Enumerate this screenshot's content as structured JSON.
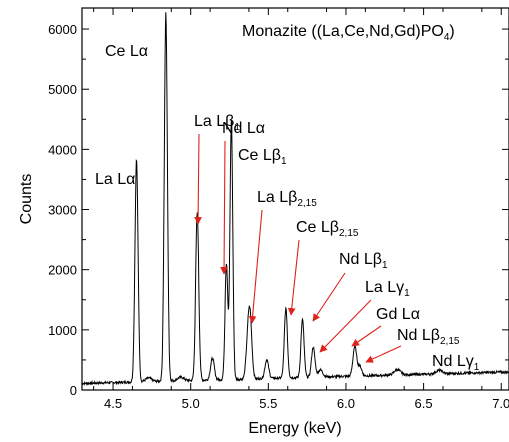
{
  "chart_data": {
    "type": "line",
    "title": "Monazite ((La,Ce,Nd,Gd)PO",
    "title_sub": "4",
    "title_end": ")",
    "xlabel": "Energy (keV)",
    "ylabel": "Counts",
    "xlim": [
      4.3,
      7.05
    ],
    "ylim": [
      0,
      6350
    ],
    "x_ticks": [
      4.5,
      5.0,
      5.5,
      6.0,
      6.5,
      7.0
    ],
    "x_tick_labels": [
      "4.5",
      "5.0",
      "5.5",
      "6.0",
      "6.5",
      "7.0"
    ],
    "y_ticks": [
      0,
      1000,
      2000,
      3000,
      4000,
      5000,
      6000
    ],
    "y_tick_labels": [
      "0",
      "1000",
      "2000",
      "3000",
      "4000",
      "5000",
      "6000"
    ],
    "grid": false,
    "line_color": "#000000",
    "arrow_color": "#e0201b",
    "baseline": {
      "start": 110,
      "end": 300
    },
    "peaks": [
      {
        "x": 4.651,
        "y": 3700,
        "w": 0.01
      },
      {
        "x": 4.73,
        "y": 60,
        "w": 0.02
      },
      {
        "x": 4.84,
        "y": 6120,
        "w": 0.01
      },
      {
        "x": 4.935,
        "y": 60,
        "w": 0.02
      },
      {
        "x": 5.042,
        "y": 2780,
        "w": 0.01
      },
      {
        "x": 5.14,
        "y": 360,
        "w": 0.012
      },
      {
        "x": 5.23,
        "y": 1930,
        "w": 0.009
      },
      {
        "x": 5.262,
        "y": 4320,
        "w": 0.009
      },
      {
        "x": 5.37,
        "y": 730,
        "w": 0.012
      },
      {
        "x": 5.385,
        "y": 760,
        "w": 0.011
      },
      {
        "x": 5.49,
        "y": 310,
        "w": 0.012
      },
      {
        "x": 5.613,
        "y": 1150,
        "w": 0.01
      },
      {
        "x": 5.72,
        "y": 960,
        "w": 0.01
      },
      {
        "x": 5.789,
        "y": 500,
        "w": 0.011
      },
      {
        "x": 5.835,
        "y": 120,
        "w": 0.015
      },
      {
        "x": 6.057,
        "y": 490,
        "w": 0.012
      },
      {
        "x": 6.09,
        "y": 160,
        "w": 0.012
      },
      {
        "x": 6.33,
        "y": 90,
        "w": 0.02
      },
      {
        "x": 6.6,
        "y": 60,
        "w": 0.02
      }
    ],
    "annotations": [
      {
        "name": "la-la",
        "main": "La L",
        "greek": "α",
        "sub": ""
      },
      {
        "name": "ce-la",
        "main": "Ce L",
        "greek": "α",
        "sub": ""
      },
      {
        "name": "la-lb1",
        "main": "La L",
        "greek": "β",
        "sub": "1"
      },
      {
        "name": "nd-la",
        "main": "Nd L",
        "greek": "α",
        "sub": ""
      },
      {
        "name": "ce-lb1",
        "main": "Ce L",
        "greek": "β",
        "sub": "1"
      },
      {
        "name": "la-lb215",
        "main": "La L",
        "greek": "β",
        "sub": "2,15"
      },
      {
        "name": "ce-lb215",
        "main": "Ce L",
        "greek": "β",
        "sub": "2,15"
      },
      {
        "name": "nd-lb1",
        "main": "Nd L",
        "greek": "β",
        "sub": "1"
      },
      {
        "name": "la-lg1",
        "main": "La L",
        "greek": "γ",
        "sub": "1"
      },
      {
        "name": "gd-la",
        "main": "Gd L",
        "greek": "α",
        "sub": ""
      },
      {
        "name": "nd-lb215",
        "main": "Nd L",
        "greek": "β",
        "sub": "2,15"
      },
      {
        "name": "nd-lg1",
        "main": "Nd L",
        "greek": "γ",
        "sub": "1"
      }
    ]
  }
}
